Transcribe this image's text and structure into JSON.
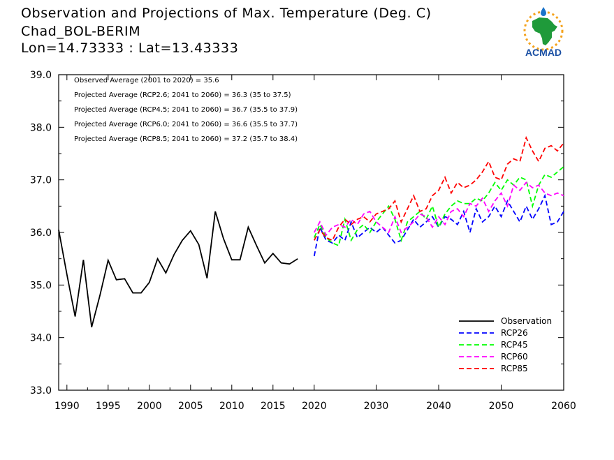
{
  "title": {
    "line1": "Observation and Projections of Max. Temperature (Deg. C)",
    "line2": "Chad_BOL-BERIM",
    "line3": "Lon=14.73333 : Lat=13.43333"
  },
  "logo": {
    "text": "ACMAD"
  },
  "annotations": [
    "Observed Average (2001 to 2020) = 35.6",
    "Projected Average (RCP2.6; 2041 to 2060) = 36.3 (35 to 37.5)",
    "Projected Average (RCP4.5; 2041 to 2060) = 36.7 (35.5 to 37.9)",
    "Projected Average (RCP6.0; 2041 to 2060) = 36.6 (35.5 to 37.7)",
    "Projected Average (RCP8.5; 2041 to 2060) = 37.2 (35.7 to 38.4)"
  ],
  "chart_data": {
    "type": "line",
    "ylim": [
      33.0,
      39.0
    ],
    "yticks": [
      "33.0",
      "34.0",
      "35.0",
      "36.0",
      "37.0",
      "38.0",
      "39.0"
    ],
    "xticks_left": [
      "1990",
      "1995",
      "2000",
      "2005",
      "2010",
      "2015",
      "2020"
    ],
    "xticks_right": [
      "2030",
      "2040",
      "2050",
      "2060"
    ],
    "legend_position": "bottom-right",
    "grid": false,
    "series": [
      {
        "name": "Observation",
        "color": "#000000",
        "dash": "solid",
        "x": [
          1989,
          1990,
          1991,
          1992,
          1993,
          1994,
          1995,
          1996,
          1997,
          1998,
          1999,
          2000,
          2001,
          2002,
          2003,
          2004,
          2005,
          2006,
          2007,
          2008,
          2009,
          2010,
          2011,
          2012,
          2013,
          2014,
          2015,
          2016,
          2017,
          2018,
          2019
        ],
        "values": [
          36.05,
          35.2,
          34.4,
          35.48,
          34.2,
          34.8,
          35.47,
          35.1,
          35.12,
          34.85,
          34.85,
          35.05,
          35.5,
          35.23,
          35.58,
          35.85,
          36.03,
          35.77,
          35.13,
          36.4,
          35.88,
          35.48,
          35.48,
          36.1,
          35.75,
          35.42,
          35.6,
          35.42,
          35.4,
          35.5,
          null
        ]
      },
      {
        "name": "RCP26",
        "color": "#0000ff",
        "dash": "dashed",
        "x": [
          2020,
          2021,
          2022,
          2023,
          2024,
          2025,
          2026,
          2027,
          2028,
          2029,
          2030,
          2031,
          2032,
          2033,
          2034,
          2035,
          2036,
          2037,
          2038,
          2039,
          2040,
          2041,
          2042,
          2043,
          2044,
          2045,
          2046,
          2047,
          2048,
          2049,
          2050,
          2051,
          2052,
          2053,
          2054,
          2055,
          2056,
          2057,
          2058,
          2059,
          2060
        ],
        "values": [
          35.55,
          36.1,
          35.85,
          35.8,
          35.95,
          35.85,
          36.2,
          35.9,
          36.0,
          36.1,
          36.0,
          36.1,
          35.95,
          35.8,
          35.85,
          36.05,
          36.25,
          36.1,
          36.2,
          36.3,
          36.1,
          36.3,
          36.25,
          36.15,
          36.4,
          36.0,
          36.45,
          36.2,
          36.3,
          36.5,
          36.3,
          36.6,
          36.4,
          36.2,
          36.5,
          36.25,
          36.45,
          36.7,
          36.15,
          36.2,
          36.4
        ]
      },
      {
        "name": "RCP45",
        "color": "#00ff00",
        "dash": "dashed",
        "x": [
          2020,
          2021,
          2022,
          2023,
          2024,
          2025,
          2026,
          2027,
          2028,
          2029,
          2030,
          2031,
          2032,
          2033,
          2034,
          2035,
          2036,
          2037,
          2038,
          2039,
          2040,
          2041,
          2042,
          2043,
          2044,
          2045,
          2046,
          2047,
          2048,
          2049,
          2050,
          2051,
          2052,
          2053,
          2054,
          2055,
          2056,
          2057,
          2058,
          2059,
          2060
        ],
        "values": [
          35.9,
          36.15,
          35.9,
          35.8,
          35.75,
          36.25,
          35.85,
          36.05,
          36.15,
          36.0,
          36.2,
          36.35,
          36.5,
          36.25,
          35.85,
          36.2,
          36.3,
          36.4,
          36.25,
          36.5,
          36.1,
          36.35,
          36.5,
          36.6,
          36.55,
          36.55,
          36.65,
          36.6,
          36.75,
          36.95,
          36.8,
          37.0,
          36.9,
          37.05,
          37.0,
          36.5,
          36.9,
          37.1,
          37.05,
          37.15,
          37.25
        ]
      },
      {
        "name": "RCP60",
        "color": "#ff00ff",
        "dash": "dashed",
        "x": [
          2020,
          2021,
          2022,
          2023,
          2024,
          2025,
          2026,
          2027,
          2028,
          2029,
          2030,
          2031,
          2032,
          2033,
          2034,
          2035,
          2036,
          2037,
          2038,
          2039,
          2040,
          2041,
          2042,
          2043,
          2044,
          2045,
          2046,
          2047,
          2048,
          2049,
          2050,
          2051,
          2052,
          2053,
          2054,
          2055,
          2056,
          2057,
          2058,
          2059,
          2060
        ],
        "values": [
          36.0,
          36.2,
          35.95,
          36.1,
          36.15,
          36.1,
          36.25,
          36.15,
          36.35,
          36.4,
          36.2,
          36.1,
          36.0,
          36.3,
          36.0,
          36.1,
          36.2,
          36.35,
          36.3,
          36.1,
          36.3,
          36.15,
          36.4,
          36.45,
          36.3,
          36.55,
          36.5,
          36.65,
          36.4,
          36.6,
          36.75,
          36.5,
          36.9,
          36.8,
          36.95,
          36.85,
          36.9,
          36.75,
          36.7,
          36.75,
          36.7
        ]
      },
      {
        "name": "RCP85",
        "color": "#ff0000",
        "dash": "dashed",
        "x": [
          2020,
          2021,
          2022,
          2023,
          2024,
          2025,
          2026,
          2027,
          2028,
          2029,
          2030,
          2031,
          2032,
          2033,
          2034,
          2035,
          2036,
          2037,
          2038,
          2039,
          2040,
          2041,
          2042,
          2043,
          2044,
          2045,
          2046,
          2047,
          2048,
          2049,
          2050,
          2051,
          2052,
          2053,
          2054,
          2055,
          2056,
          2057,
          2058,
          2059,
          2060
        ],
        "values": [
          35.85,
          36.05,
          35.9,
          35.85,
          36.1,
          36.25,
          36.15,
          36.25,
          36.3,
          36.2,
          36.35,
          36.4,
          36.45,
          36.6,
          36.2,
          36.45,
          36.7,
          36.4,
          36.45,
          36.7,
          36.8,
          37.05,
          36.75,
          36.95,
          36.85,
          36.9,
          37.0,
          37.15,
          37.35,
          37.05,
          37.0,
          37.3,
          37.4,
          37.35,
          37.8,
          37.55,
          37.35,
          37.6,
          37.65,
          37.55,
          37.7
        ]
      }
    ]
  }
}
